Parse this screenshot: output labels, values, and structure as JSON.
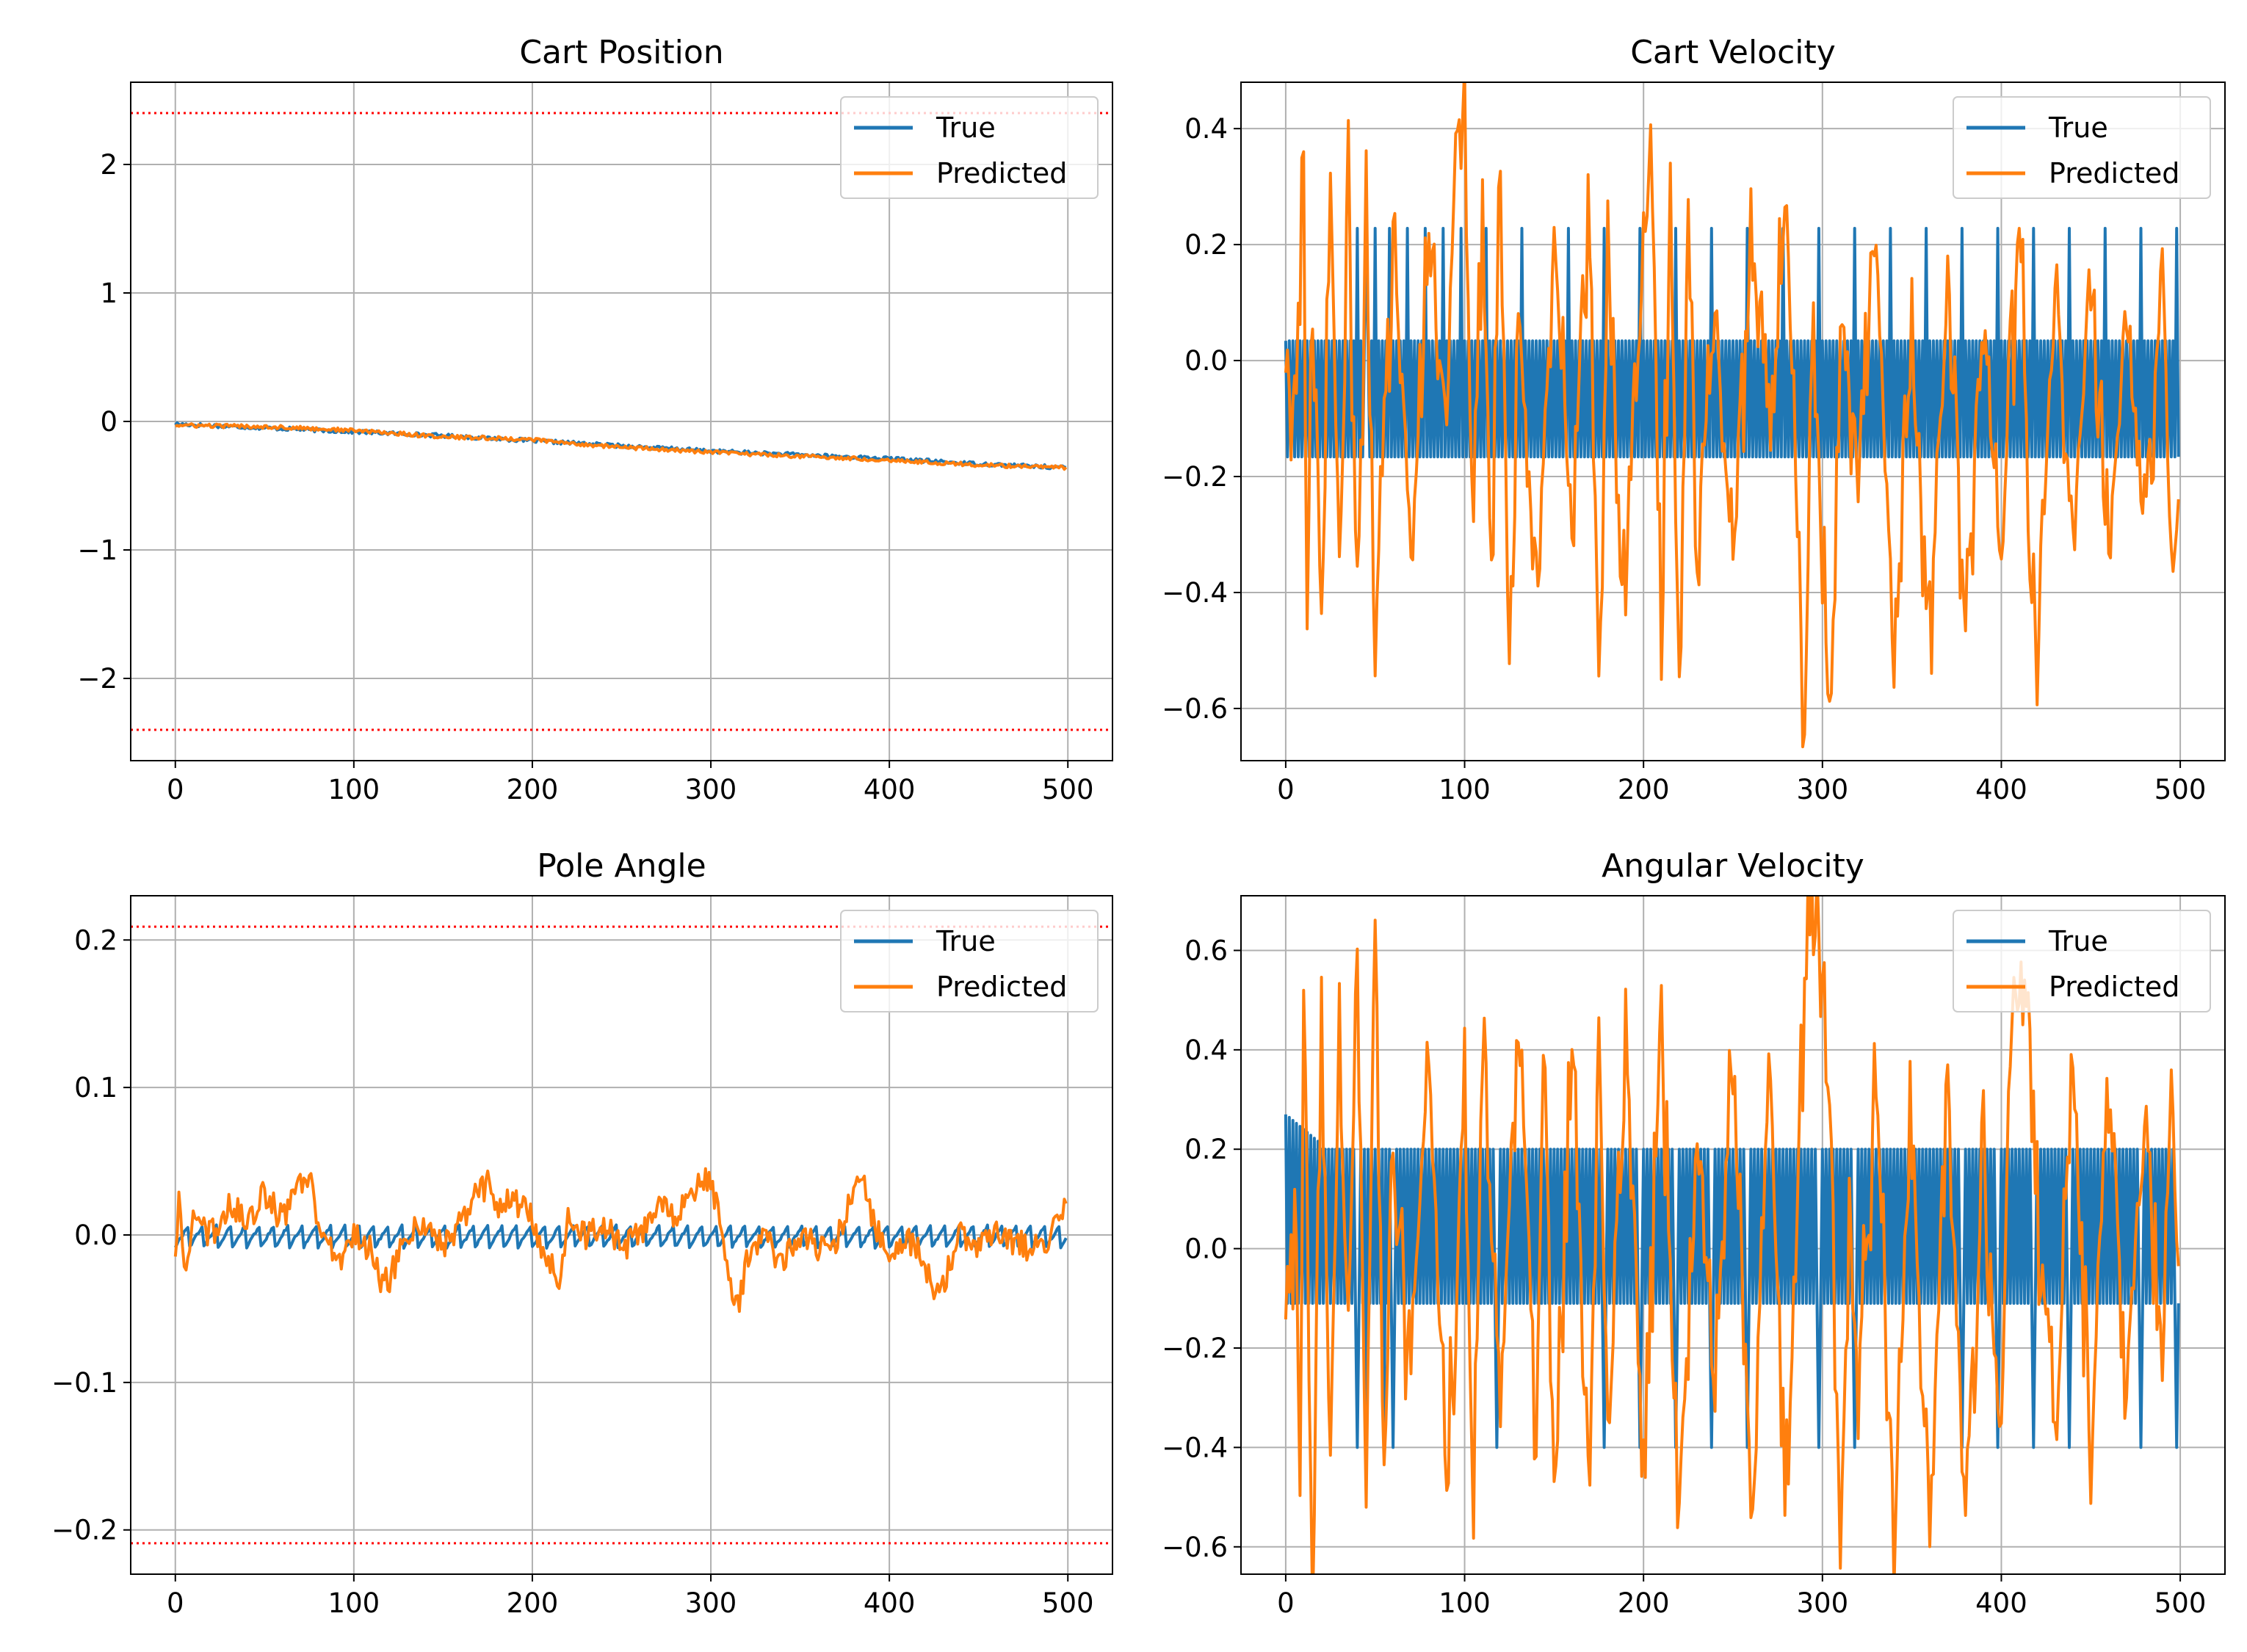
{
  "colors": {
    "true_series": "#1f77b4",
    "predicted_series": "#ff7f0e",
    "limit_line": "#ff0000",
    "grid": "#b0b0b0",
    "axes": "#000000"
  },
  "legend": {
    "placement": "upper right",
    "labels": [
      "True",
      "Predicted"
    ]
  },
  "chart_data": [
    {
      "type": "line",
      "title": "Cart Position",
      "xlabel": "",
      "ylabel": "",
      "xlim": [
        -25,
        525
      ],
      "ylim": [
        -2.64,
        2.64
      ],
      "grid": true,
      "x_ticks": [
        0,
        100,
        200,
        300,
        400,
        500
      ],
      "x_tick_labels": [
        "0",
        "100",
        "200",
        "300",
        "400",
        "500"
      ],
      "y_ticks": [
        -2,
        -1,
        0,
        1,
        2
      ],
      "y_tick_labels": [
        "−2",
        "−1",
        "0",
        "1",
        "2"
      ],
      "hlines": [
        2.4,
        -2.4
      ],
      "series": [
        {
          "name": "True",
          "x": [
            0,
            50,
            100,
            150,
            200,
            250,
            300,
            350,
            400,
            450,
            500
          ],
          "values": [
            -0.02,
            -0.05,
            -0.08,
            -0.11,
            -0.15,
            -0.19,
            -0.23,
            -0.26,
            -0.29,
            -0.33,
            -0.36
          ]
        },
        {
          "name": "Predicted",
          "x": [
            0,
            50,
            100,
            150,
            200,
            220,
            250,
            300,
            350,
            400,
            450,
            500
          ],
          "values": [
            -0.03,
            -0.04,
            -0.07,
            -0.12,
            -0.14,
            -0.17,
            -0.2,
            -0.24,
            -0.27,
            -0.3,
            -0.34,
            -0.36
          ]
        }
      ]
    },
    {
      "type": "line",
      "title": "Cart Velocity",
      "xlabel": "",
      "ylabel": "",
      "xlim": [
        -25,
        525
      ],
      "ylim": [
        -0.69,
        0.48
      ],
      "grid": true,
      "x_ticks": [
        0,
        100,
        200,
        300,
        400,
        500
      ],
      "x_tick_labels": [
        "0",
        "100",
        "200",
        "300",
        "400",
        "500"
      ],
      "y_ticks": [
        -0.6,
        -0.4,
        -0.2,
        0.0,
        0.2,
        0.4
      ],
      "y_tick_labels": [
        "−0.6",
        "−0.4",
        "−0.2",
        "0.0",
        "0.2",
        "0.4"
      ],
      "hlines": [],
      "series": [
        {
          "name": "True",
          "description_values": "oscillation between -0.166 and 0.034 with periodic spikes to 0.228",
          "high": 0.034,
          "low": -0.166,
          "spike": 0.228,
          "spike_x": [
            40,
            45,
            50,
            58,
            68,
            78,
            88,
            98,
            112,
            132,
            158,
            178,
            198,
            218,
            238,
            258,
            278,
            298,
            318,
            338,
            358,
            378,
            398,
            418,
            438,
            458,
            478,
            498
          ]
        },
        {
          "name": "Predicted",
          "x": [
            0,
            5,
            10,
            12,
            15,
            20,
            25,
            30,
            35,
            40,
            45,
            50,
            60,
            70,
            80,
            90,
            95,
            100,
            105,
            110,
            115,
            120,
            125,
            130,
            140,
            150,
            160,
            170,
            175,
            180,
            190,
            200,
            205,
            210,
            215,
            220,
            225,
            230,
            240,
            250,
            260,
            270,
            280,
            290,
            295,
            300,
            305,
            310,
            320,
            330,
            340,
            350,
            360,
            370,
            380,
            390,
            400,
            410,
            420,
            430,
            440,
            450,
            460,
            470,
            480,
            490,
            495,
            500
          ],
          "values": [
            0.05,
            -0.1,
            0.35,
            -0.46,
            0.04,
            -0.44,
            0.26,
            -0.36,
            0.3,
            -0.38,
            0.25,
            -0.45,
            0.22,
            -0.3,
            0.2,
            -0.1,
            0.37,
            0.42,
            -0.32,
            0.25,
            -0.38,
            0.3,
            -0.52,
            0.1,
            -0.45,
            0.24,
            -0.3,
            0.3,
            -0.55,
            0.15,
            -0.42,
            0.2,
            0.35,
            -0.42,
            0.3,
            -0.54,
            0.25,
            -0.3,
            0.1,
            -0.38,
            0.2,
            -0.15,
            0.28,
            -0.64,
            0.1,
            -0.37,
            -0.6,
            0.1,
            -0.2,
            0.22,
            -0.53,
            0.05,
            -0.5,
            0.15,
            -0.45,
            0.1,
            -0.35,
            0.24,
            -0.56,
            0.15,
            -0.3,
            0.2,
            -0.36,
            0.1,
            -0.3,
            0.17,
            -0.35,
            -0.2
          ]
        }
      ]
    },
    {
      "type": "line",
      "title": "Pole Angle",
      "xlabel": "",
      "ylabel": "",
      "xlim": [
        -25,
        525
      ],
      "ylim": [
        -0.23,
        0.23
      ],
      "grid": true,
      "x_ticks": [
        0,
        100,
        200,
        300,
        400,
        500
      ],
      "x_tick_labels": [
        "0",
        "100",
        "200",
        "300",
        "400",
        "500"
      ],
      "y_ticks": [
        -0.2,
        -0.1,
        0.0,
        0.1,
        0.2
      ],
      "y_tick_labels": [
        "−0.2",
        "−0.1",
        "0.0",
        "0.1",
        "0.2"
      ],
      "hlines": [
        0.209,
        -0.209
      ],
      "series": [
        {
          "name": "True",
          "description_values": "sawtooth oscillation between -0.008 and 0.008",
          "high": 0.008,
          "low": -0.008
        },
        {
          "name": "Predicted",
          "x": [
            0,
            2,
            5,
            10,
            20,
            30,
            40,
            50,
            60,
            70,
            75,
            80,
            90,
            100,
            110,
            115,
            120,
            130,
            140,
            150,
            160,
            170,
            175,
            180,
            190,
            200,
            205,
            210,
            215,
            220,
            225,
            230,
            240,
            250,
            260,
            270,
            280,
            290,
            295,
            300,
            305,
            310,
            315,
            320,
            330,
            340,
            350,
            360,
            370,
            380,
            385,
            390,
            400,
            410,
            420,
            425,
            430,
            440,
            450,
            460,
            470,
            480,
            490,
            495,
            500
          ],
          "values": [
            -0.01,
            0.025,
            -0.03,
            0.01,
            0.0,
            0.02,
            0.01,
            0.028,
            0.01,
            0.035,
            0.038,
            0.01,
            -0.02,
            0.0,
            -0.01,
            -0.035,
            -0.03,
            0.0,
            0.01,
            -0.01,
            0.01,
            0.03,
            0.035,
            0.02,
            0.025,
            0.01,
            -0.01,
            -0.02,
            -0.03,
            0.01,
            0.0,
            0.0,
            0.01,
            -0.01,
            0.0,
            0.02,
            0.01,
            0.03,
            0.038,
            0.04,
            0.01,
            -0.03,
            -0.05,
            -0.02,
            0.0,
            -0.02,
            0.0,
            -0.01,
            -0.005,
            0.03,
            0.035,
            0.01,
            -0.01,
            0.0,
            -0.02,
            -0.04,
            -0.035,
            0.0,
            -0.01,
            0.0,
            -0.005,
            -0.01,
            0.0,
            0.018,
            0.022
          ]
        }
      ]
    },
    {
      "type": "line",
      "title": "Angular Velocity",
      "xlabel": "",
      "ylabel": "",
      "xlim": [
        -25,
        525
      ],
      "ylim": [
        -0.655,
        0.71
      ],
      "grid": true,
      "x_ticks": [
        0,
        100,
        200,
        300,
        400,
        500
      ],
      "x_tick_labels": [
        "0",
        "100",
        "200",
        "300",
        "400",
        "500"
      ],
      "y_ticks": [
        -0.6,
        -0.4,
        -0.2,
        0.0,
        0.2,
        0.4,
        0.6
      ],
      "y_tick_labels": [
        "−0.6",
        "−0.4",
        "−0.2",
        "0.0",
        "0.2",
        "0.4",
        "0.6"
      ],
      "hlines": [],
      "series": [
        {
          "name": "True",
          "description_values": "oscillation between about -0.11 and 0.20 with occasional dips to -0.40",
          "high": 0.2,
          "low": -0.11,
          "start": 0.27,
          "dip": -0.4,
          "dip_x": [
            40,
            45,
            55,
            60,
            118,
            178,
            198,
            218,
            238,
            258,
            298,
            318,
            378,
            398,
            418,
            438,
            478,
            498
          ]
        },
        {
          "name": "Predicted",
          "x": [
            0,
            5,
            8,
            10,
            15,
            20,
            25,
            30,
            35,
            40,
            45,
            50,
            55,
            60,
            70,
            80,
            90,
            100,
            105,
            110,
            120,
            130,
            140,
            145,
            150,
            160,
            170,
            175,
            180,
            190,
            200,
            210,
            220,
            230,
            240,
            250,
            260,
            270,
            280,
            290,
            293,
            295,
            298,
            300,
            305,
            310,
            315,
            320,
            330,
            340,
            350,
            360,
            370,
            380,
            390,
            400,
            405,
            410,
            413,
            415,
            420,
            430,
            440,
            450,
            460,
            470,
            480,
            490,
            495,
            500
          ],
          "values": [
            -0.12,
            0.08,
            -0.54,
            0.56,
            -0.59,
            0.4,
            -0.43,
            0.41,
            -0.2,
            0.65,
            -0.5,
            0.65,
            -0.4,
            0.2,
            -0.3,
            0.45,
            -0.52,
            0.37,
            -0.57,
            0.4,
            -0.3,
            0.45,
            -0.35,
            0.48,
            -0.55,
            0.4,
            -0.5,
            0.45,
            -0.3,
            0.48,
            -0.4,
            0.4,
            -0.5,
            0.2,
            -0.3,
            0.42,
            -0.55,
            0.4,
            -0.5,
            0.55,
            0.6,
            0.58,
            0.61,
            0.5,
            0.2,
            -0.6,
            0.1,
            -0.3,
            0.35,
            -0.56,
            0.3,
            -0.57,
            0.4,
            -0.5,
            0.15,
            -0.4,
            0.45,
            0.5,
            0.48,
            0.5,
            0.1,
            -0.35,
            0.38,
            -0.4,
            0.4,
            -0.3,
            0.3,
            -0.25,
            0.35,
            -0.15
          ]
        }
      ]
    }
  ]
}
